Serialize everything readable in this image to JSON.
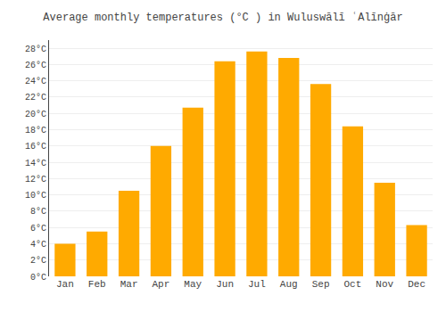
{
  "chart_data": {
    "type": "bar",
    "title": "Average monthly temperatures (°C ) in Wuluswālī ʿAlīnġār",
    "categories": [
      "Jan",
      "Feb",
      "Mar",
      "Apr",
      "May",
      "Jun",
      "Jul",
      "Aug",
      "Sep",
      "Oct",
      "Nov",
      "Dec"
    ],
    "values": [
      4.0,
      5.5,
      10.5,
      16.0,
      20.7,
      26.4,
      27.6,
      26.8,
      23.6,
      18.4,
      11.5,
      6.3
    ],
    "color": "#FFAA00",
    "ylim": [
      0,
      29
    ],
    "yticks": [
      {
        "value": 0,
        "label": "0°C"
      },
      {
        "value": 2,
        "label": "2°C"
      },
      {
        "value": 4,
        "label": "4°C"
      },
      {
        "value": 6,
        "label": "6°C"
      },
      {
        "value": 8,
        "label": "8°C"
      },
      {
        "value": 10,
        "label": "10°C"
      },
      {
        "value": 12,
        "label": "12°C"
      },
      {
        "value": 14,
        "label": "14°C"
      },
      {
        "value": 16,
        "label": "16°C"
      },
      {
        "value": 18,
        "label": "18°C"
      },
      {
        "value": 20,
        "label": "20°C"
      },
      {
        "value": 22,
        "label": "22°C"
      },
      {
        "value": 24,
        "label": "24°C"
      },
      {
        "value": 26,
        "label": "26°C"
      },
      {
        "value": 28,
        "label": "28°C"
      }
    ],
    "grid": true
  }
}
